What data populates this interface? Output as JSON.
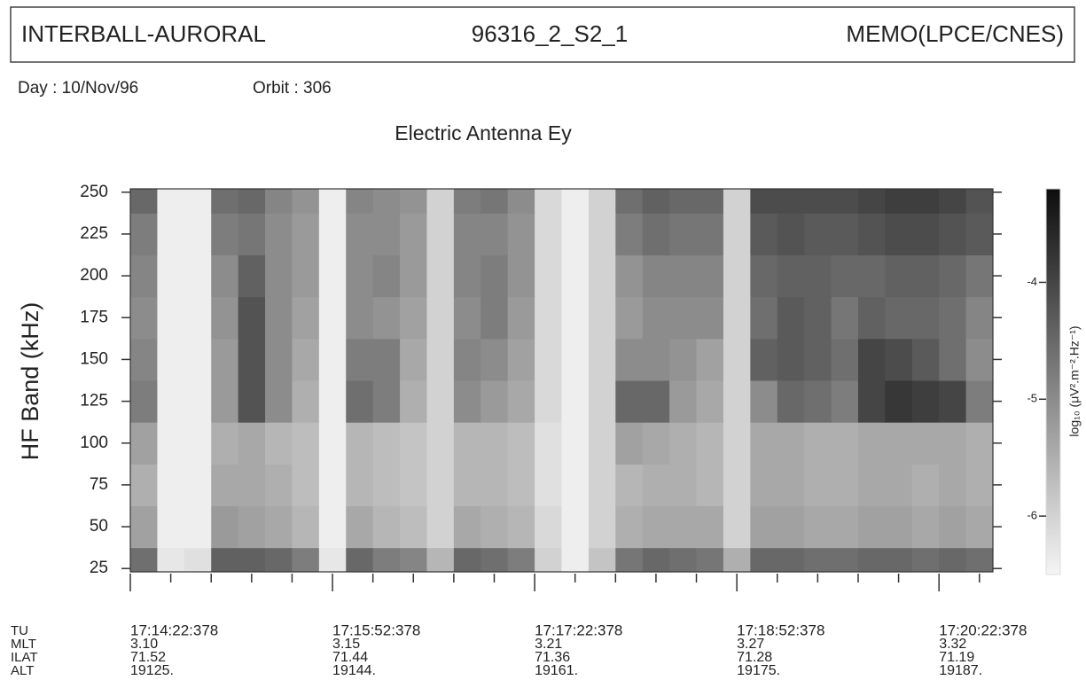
{
  "header": {
    "mission": "INTERBALL-AURORAL",
    "file": "96316_2_S2_1",
    "source": "MEMO(LPCE/CNES)"
  },
  "info": {
    "day": "Day : 10/Nov/96",
    "orbit": "Orbit : 306"
  },
  "chart_data": {
    "type": "heatmap",
    "title": "Electric Antenna Ey",
    "y_label": "HF Band (kHz)",
    "xlim": [
      0,
      384
    ],
    "ylim": [
      23,
      252
    ],
    "yticks": [
      25,
      50,
      75,
      100,
      125,
      150,
      175,
      200,
      225,
      250
    ],
    "xticks": [
      {
        "value": 0,
        "label": "17:14:22:378"
      },
      {
        "value": 90,
        "label": "17:15:52:378"
      },
      {
        "value": 180,
        "label": "17:17:22:378"
      },
      {
        "value": 270,
        "label": "17:18:52:378"
      },
      {
        "value": 360,
        "label": "17:20:22:378"
      }
    ],
    "xminorticks": [
      18,
      36,
      54,
      72,
      108,
      126,
      144,
      162,
      198,
      216,
      234,
      252,
      288,
      306,
      324,
      342,
      378
    ],
    "x_edges": [
      0,
      12,
      24,
      36,
      48,
      60,
      72,
      84,
      96,
      108,
      120,
      132,
      144,
      156,
      168,
      180,
      192,
      204,
      216,
      228,
      240,
      252,
      264,
      276,
      288,
      300,
      312,
      324,
      336,
      348,
      360,
      372,
      384
    ],
    "y_edges": [
      23,
      37.5,
      62.5,
      87.5,
      112.5,
      137.5,
      162.5,
      187.5,
      212.5,
      237.5,
      252
    ],
    "z": [
      [
        -4.6,
        -6.3,
        -6.2,
        -4.4,
        -4.4,
        -4.5,
        -4.8,
        -6.3,
        -4.5,
        -4.8,
        -4.9,
        -5.6,
        -4.5,
        -4.6,
        -4.8,
        -6.0,
        -6.4,
        -5.8,
        -4.7,
        -4.5,
        -4.6,
        -4.7,
        -5.5,
        -4.5,
        -4.5,
        -4.6,
        -4.6,
        -4.5,
        -4.5,
        -4.6,
        -4.5,
        -4.6
      ],
      [
        -5.3,
        -6.4,
        -6.4,
        -5.2,
        -5.3,
        -5.4,
        -5.6,
        -6.4,
        -5.4,
        -5.6,
        -5.7,
        -6.0,
        -5.4,
        -5.5,
        -5.6,
        -6.1,
        -6.4,
        -6.0,
        -5.5,
        -5.4,
        -5.4,
        -5.4,
        -6.0,
        -5.3,
        -5.3,
        -5.4,
        -5.4,
        -5.3,
        -5.3,
        -5.4,
        -5.3,
        -5.4
      ],
      [
        -5.5,
        -6.4,
        -6.4,
        -5.4,
        -5.4,
        -5.5,
        -5.7,
        -6.4,
        -5.6,
        -5.7,
        -5.8,
        -6.0,
        -5.6,
        -5.6,
        -5.7,
        -6.2,
        -6.4,
        -6.0,
        -5.6,
        -5.5,
        -5.5,
        -5.6,
        -6.0,
        -5.4,
        -5.4,
        -5.5,
        -5.5,
        -5.4,
        -5.4,
        -5.5,
        -5.4,
        -5.5
      ],
      [
        -5.3,
        -6.4,
        -6.4,
        -5.5,
        -5.4,
        -5.6,
        -5.7,
        -6.4,
        -5.6,
        -5.7,
        -5.8,
        -6.0,
        -5.6,
        -5.6,
        -5.7,
        -6.2,
        -6.4,
        -6.0,
        -5.3,
        -5.4,
        -5.5,
        -5.6,
        -6.0,
        -5.4,
        -5.4,
        -5.5,
        -5.5,
        -5.4,
        -5.4,
        -5.4,
        -5.4,
        -5.5
      ],
      [
        -4.8,
        -6.4,
        -6.4,
        -5.2,
        -4.2,
        -5.0,
        -5.5,
        -6.4,
        -4.6,
        -4.8,
        -5.5,
        -6.0,
        -5.0,
        -5.2,
        -5.4,
        -6.1,
        -6.4,
        -6.0,
        -4.5,
        -4.5,
        -5.2,
        -5.4,
        -6.0,
        -5.0,
        -4.5,
        -4.6,
        -4.8,
        -4.0,
        -3.8,
        -3.9,
        -4.0,
        -4.8
      ],
      [
        -4.9,
        -6.4,
        -6.4,
        -5.2,
        -4.2,
        -5.0,
        -5.4,
        -6.4,
        -4.8,
        -4.8,
        -5.4,
        -6.0,
        -4.9,
        -5.0,
        -5.3,
        -6.1,
        -6.4,
        -6.0,
        -5.0,
        -5.0,
        -5.1,
        -5.3,
        -6.0,
        -4.4,
        -4.3,
        -4.4,
        -4.6,
        -4.0,
        -4.1,
        -4.3,
        -4.6,
        -5.0
      ],
      [
        -5.0,
        -6.4,
        -6.4,
        -5.1,
        -4.2,
        -5.0,
        -5.3,
        -6.4,
        -5.0,
        -5.1,
        -5.3,
        -6.0,
        -5.0,
        -4.8,
        -5.2,
        -6.1,
        -6.4,
        -6.0,
        -5.2,
        -5.0,
        -5.0,
        -5.0,
        -6.0,
        -4.6,
        -4.3,
        -4.4,
        -4.7,
        -4.4,
        -4.5,
        -4.5,
        -4.6,
        -4.9
      ],
      [
        -4.9,
        -6.4,
        -6.4,
        -5.0,
        -4.4,
        -5.0,
        -5.2,
        -6.4,
        -5.0,
        -4.9,
        -5.2,
        -6.0,
        -4.9,
        -4.8,
        -5.1,
        -6.1,
        -6.4,
        -6.0,
        -5.1,
        -4.9,
        -4.9,
        -4.9,
        -6.0,
        -4.5,
        -4.4,
        -4.4,
        -4.5,
        -4.5,
        -4.4,
        -4.4,
        -4.5,
        -4.7
      ],
      [
        -4.8,
        -6.4,
        -6.4,
        -4.8,
        -4.7,
        -5.0,
        -5.2,
        -6.4,
        -5.0,
        -5.0,
        -5.2,
        -6.0,
        -4.9,
        -4.9,
        -5.1,
        -6.1,
        -6.4,
        -6.0,
        -4.8,
        -4.6,
        -4.7,
        -4.7,
        -6.0,
        -4.3,
        -4.2,
        -4.3,
        -4.3,
        -4.2,
        -4.1,
        -4.1,
        -4.2,
        -4.3
      ],
      [
        -4.5,
        -6.4,
        -6.4,
        -4.6,
        -4.5,
        -4.9,
        -5.1,
        -6.4,
        -4.9,
        -5.0,
        -5.1,
        -6.0,
        -4.8,
        -4.7,
        -5.0,
        -6.1,
        -6.4,
        -6.0,
        -4.6,
        -4.4,
        -4.5,
        -4.5,
        -6.0,
        -4.1,
        -4.1,
        -4.1,
        -4.1,
        -4.0,
        -3.9,
        -3.9,
        -4.0,
        -4.2
      ]
    ],
    "colorbar": {
      "label": "log₁₀ (μV².m⁻².Hz⁻¹)",
      "lim": [
        -6.5,
        -3.2
      ],
      "ticks": [
        -4,
        -5,
        -6
      ]
    },
    "x_table": {
      "row_labels": [
        "TU",
        "MLT",
        "ILAT",
        "ALT"
      ],
      "rows": [
        [
          "3.10",
          "3.15",
          "3.21",
          "3.27",
          "3.32"
        ],
        [
          "71.52",
          "71.44",
          "71.36",
          "71.28",
          "71.19"
        ],
        [
          "19125.",
          "19144.",
          "19161.",
          "19175.",
          "19187."
        ]
      ]
    }
  }
}
